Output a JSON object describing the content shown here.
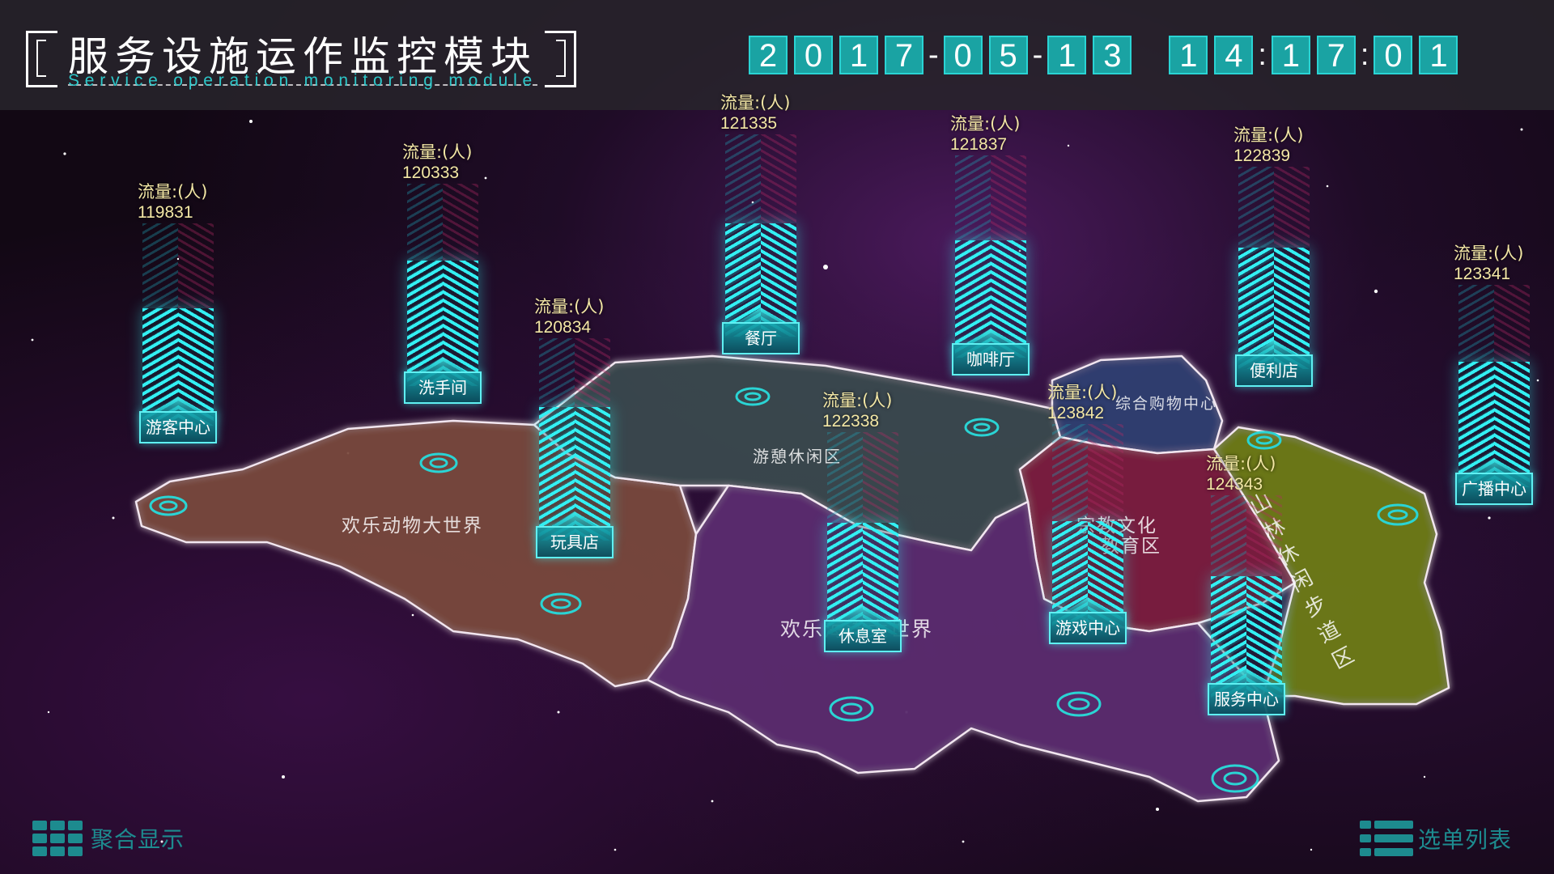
{
  "header": {
    "title_cn": "服务设施运作监控模块",
    "title_en": "Service operation monitoring module"
  },
  "clock": {
    "date_digits": [
      "2",
      "0",
      "1",
      "7",
      "0",
      "5",
      "1",
      "3"
    ],
    "time_digits": [
      "1",
      "4",
      "1",
      "7",
      "0",
      "1"
    ],
    "date_sep": "-",
    "time_sep": ":"
  },
  "regions": {
    "animal_world": "欢乐动物大世界",
    "leisure": "游憩休闲区",
    "shopping": "综合购物中心",
    "religion_line1": "宗教文化",
    "religion_line2": "教育区",
    "forest": "山林休闲步道区",
    "ocean_world": "欢乐海洋大世界"
  },
  "flow_label": "流量:(人)",
  "facilities": [
    {
      "name": "游客中心",
      "flow": "119831",
      "level": 0.58
    },
    {
      "name": "洗手间",
      "flow": "120333",
      "level": 0.62
    },
    {
      "name": "玩具店",
      "flow": "120834",
      "level": 0.66
    },
    {
      "name": "餐厅",
      "flow": "121335",
      "level": 0.56
    },
    {
      "name": "咖啡厅",
      "flow": "121837",
      "level": 0.58
    },
    {
      "name": "便利店",
      "flow": "122839",
      "level": 0.6
    },
    {
      "name": "广播中心",
      "flow": "123341",
      "level": 0.62
    },
    {
      "name": "休息室",
      "flow": "122338",
      "level": 0.55
    },
    {
      "name": "游戏中心",
      "flow": "123842",
      "level": 0.52
    },
    {
      "name": "服务中心",
      "flow": "124343",
      "level": 0.6
    }
  ],
  "footer": {
    "aggregate_label": "聚合显示",
    "list_label": "选单列表"
  },
  "colors": {
    "accent": "#33f0f3",
    "flow_text": "#f3e7a5",
    "animal_region": "#7a4a3c",
    "leisure_region": "#3a4a4e",
    "shopping_region": "#2f3f70",
    "religion_region": "#7a1f3f",
    "forest_region": "#6d7a18",
    "ocean_region": "#5a2a6e"
  }
}
